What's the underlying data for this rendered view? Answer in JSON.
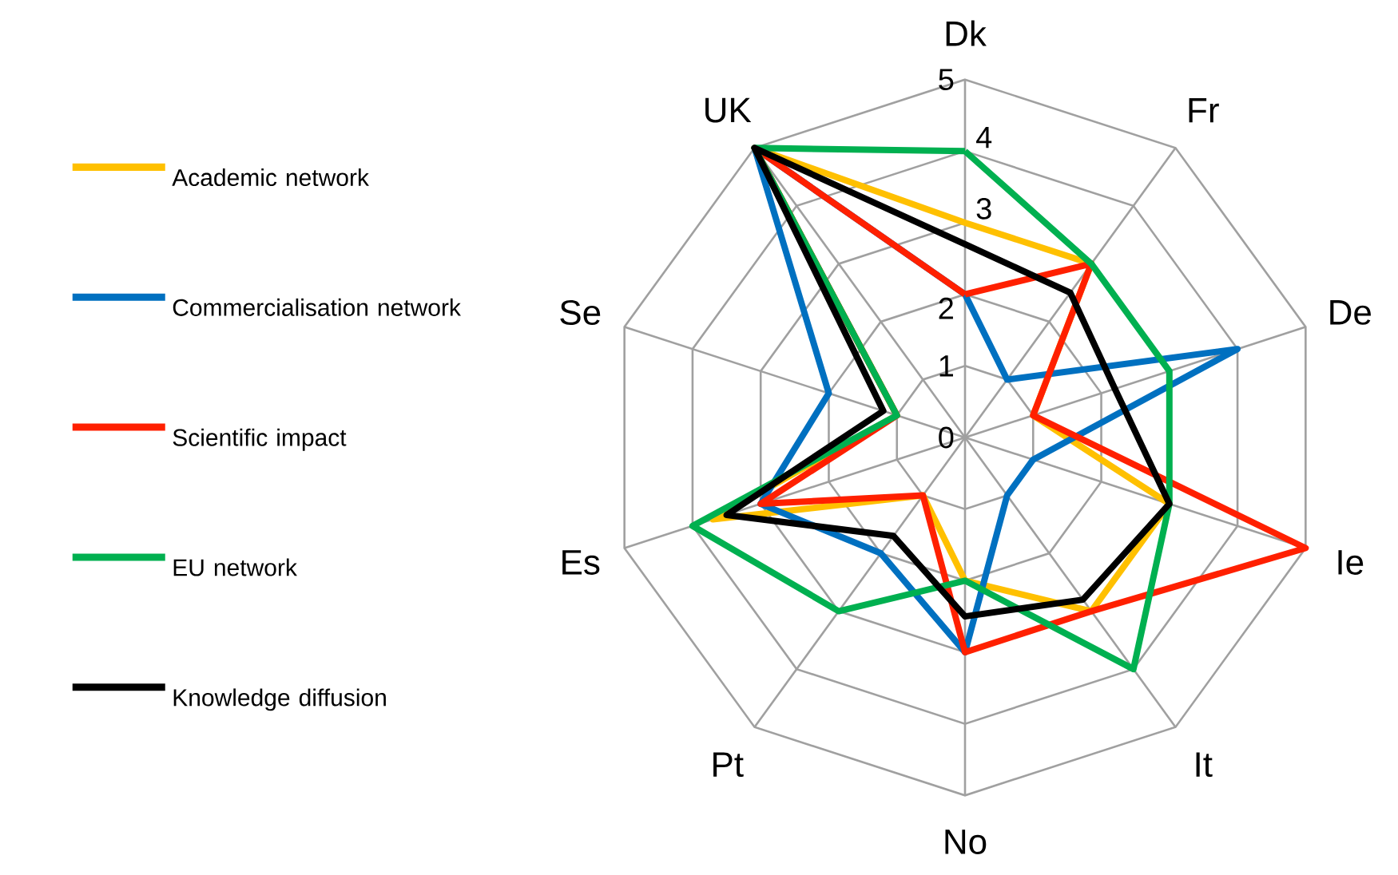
{
  "chart_data": {
    "type": "radar",
    "categories": [
      "Dk",
      "Fr",
      "De",
      "Ie",
      "It",
      "No",
      "Pt",
      "Es",
      "Se",
      "UK"
    ],
    "ylim": [
      0,
      5
    ],
    "yticks": [
      0,
      1,
      2,
      3,
      4,
      5
    ],
    "grid": true,
    "legend": "left",
    "marker": "none",
    "line_style": "solid",
    "series": [
      {
        "name": "Academic network",
        "color": "#ffc000",
        "values": [
          3,
          3,
          1,
          3,
          3,
          2,
          1,
          3.7,
          1,
          5
        ]
      },
      {
        "name": "Commercialisation network",
        "color": "#0070c0",
        "values": [
          2,
          1,
          4,
          1,
          1,
          3,
          2,
          3,
          2,
          5
        ]
      },
      {
        "name": "Scientific impact",
        "color": "#ff2000",
        "values": [
          2,
          3,
          1,
          5,
          3,
          3,
          1,
          3,
          1,
          5
        ]
      },
      {
        "name": "EU network",
        "color": "#00b050",
        "values": [
          4,
          3,
          3,
          3,
          4,
          2,
          3,
          4,
          1,
          5
        ]
      },
      {
        "name": "Knowledge diffusion",
        "color": "#000000",
        "values": [
          2.7,
          2.5,
          2.2,
          3,
          2.8,
          2.5,
          1.7,
          3.5,
          1.2,
          5
        ]
      }
    ]
  }
}
